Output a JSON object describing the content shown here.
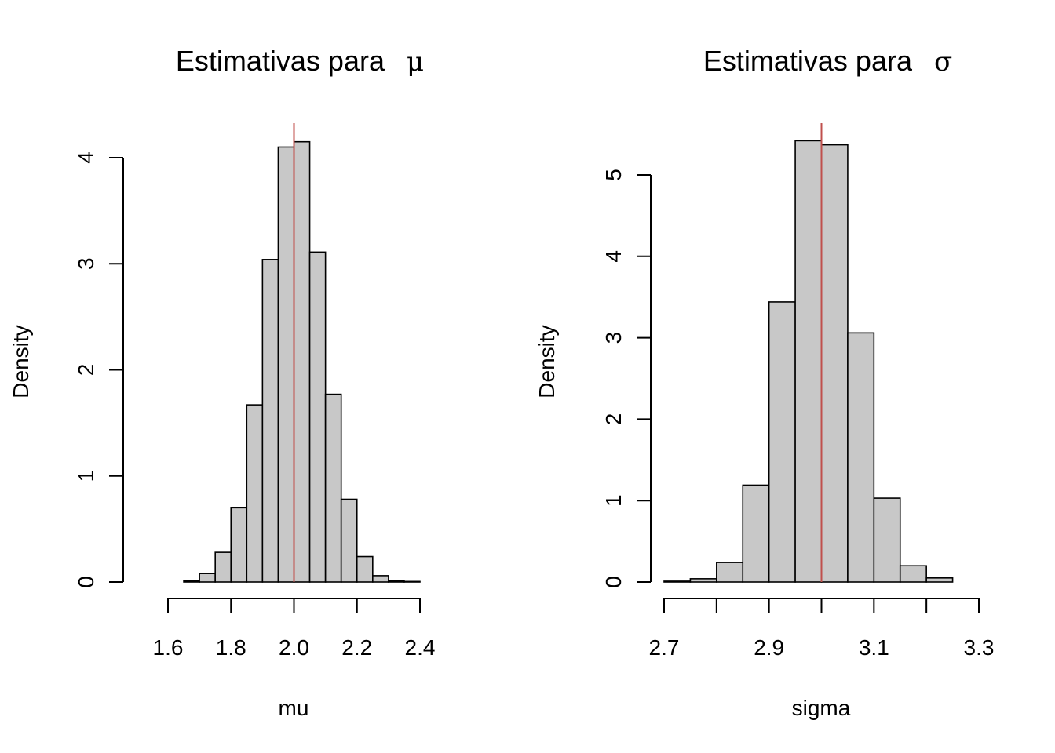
{
  "colors": {
    "bar_fill": "#c8c8c8",
    "bar_stroke": "#000000",
    "ref_line": "#c0504d"
  },
  "chart_data": [
    {
      "type": "bar",
      "title": "Estimativas para",
      "title_symbol": "μ",
      "xlabel": "mu",
      "ylabel": "Density",
      "xlim": [
        1.6,
        2.4
      ],
      "ylim": [
        0,
        4
      ],
      "xticks": [
        1.6,
        1.8,
        2.0,
        2.2,
        2.4
      ],
      "xtick_labels": [
        "1.6",
        "1.8",
        "2.0",
        "2.2",
        "2.4"
      ],
      "yticks": [
        0,
        1,
        2,
        3,
        4
      ],
      "ytick_labels": [
        "0",
        "1",
        "2",
        "3",
        "4"
      ],
      "bin_edges": [
        1.65,
        1.7,
        1.75,
        1.8,
        1.85,
        1.9,
        1.95,
        2.0,
        2.05,
        2.1,
        2.15,
        2.2,
        2.25,
        2.3,
        2.35,
        2.4
      ],
      "values": [
        0.01,
        0.08,
        0.28,
        0.7,
        1.67,
        3.04,
        4.1,
        4.15,
        3.11,
        1.77,
        0.78,
        0.24,
        0.06,
        0.01,
        0.005
      ],
      "ref_line_x": 2.0,
      "grid": false
    },
    {
      "type": "bar",
      "title": "Estimativas para",
      "title_symbol": "σ",
      "xlabel": "sigma",
      "ylabel": "Density",
      "xlim": [
        2.7,
        3.3
      ],
      "ylim": [
        0,
        5
      ],
      "xticks": [
        2.7,
        2.8,
        2.9,
        3.0,
        3.1,
        3.2,
        3.3
      ],
      "xtick_labels": [
        "2.7",
        "",
        "2.9",
        "",
        "3.1",
        "",
        "3.3"
      ],
      "yticks": [
        0,
        1,
        2,
        3,
        4,
        5
      ],
      "ytick_labels": [
        "0",
        "1",
        "2",
        "3",
        "4",
        "5"
      ],
      "bin_edges": [
        2.7,
        2.75,
        2.8,
        2.85,
        2.9,
        2.95,
        3.0,
        3.05,
        3.1,
        3.15,
        3.2,
        3.25
      ],
      "values": [
        0.01,
        0.04,
        0.24,
        1.19,
        3.44,
        5.42,
        5.37,
        3.06,
        1.03,
        0.2,
        0.05
      ],
      "ref_line_x": 3.0,
      "grid": false
    }
  ]
}
